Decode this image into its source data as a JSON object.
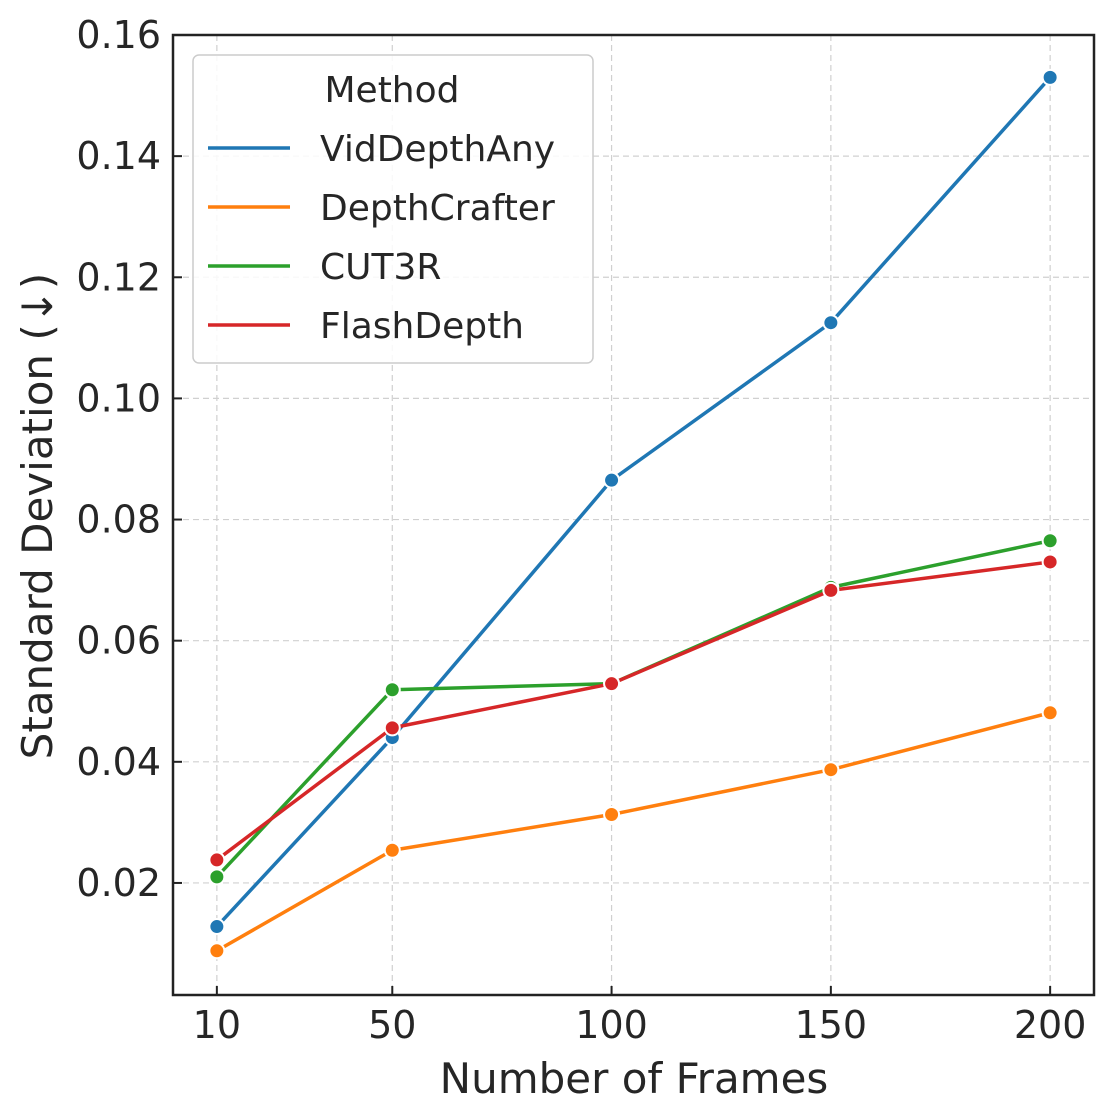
{
  "chart_data": {
    "type": "line",
    "title": "",
    "xlabel": "Number of Frames",
    "ylabel": "Standard Deviation (↓)",
    "x": [
      10,
      50,
      100,
      150,
      200
    ],
    "x_tick_labels": [
      "10",
      "50",
      "100",
      "150",
      "200"
    ],
    "xlim": [
      0,
      210
    ],
    "y_ticks": [
      0.02,
      0.04,
      0.06,
      0.08,
      0.1,
      0.12,
      0.14,
      0.16
    ],
    "y_tick_labels": [
      "0.02",
      "0.04",
      "0.06",
      "0.08",
      "0.10",
      "0.12",
      "0.14",
      "0.16"
    ],
    "ylim": [
      0.0015,
      0.16
    ],
    "grid": true,
    "legend": {
      "title": "Method",
      "position": "top-left"
    },
    "series": [
      {
        "name": "VidDepthAny",
        "color": "#1f77b4",
        "values": [
          0.0128,
          0.044,
          0.0865,
          0.1125,
          0.153
        ]
      },
      {
        "name": "DepthCrafter",
        "color": "#ff7f0e",
        "values": [
          0.0088,
          0.0254,
          0.0313,
          0.0387,
          0.0481
        ]
      },
      {
        "name": "CUT3R",
        "color": "#2ca02c",
        "values": [
          0.021,
          0.0519,
          0.0529,
          0.0688,
          0.0765
        ]
      },
      {
        "name": "FlashDepth",
        "color": "#d62728",
        "values": [
          0.0238,
          0.0456,
          0.0529,
          0.0683,
          0.073
        ]
      }
    ]
  }
}
